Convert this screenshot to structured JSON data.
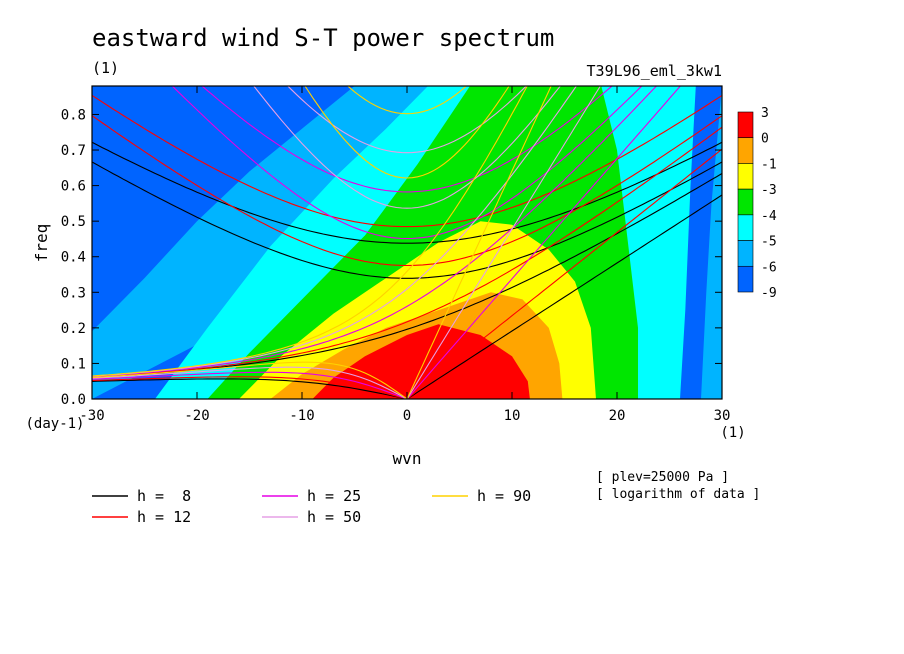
{
  "chart_data": {
    "type": "heatmap",
    "title": "eastward wind S-T power spectrum",
    "title_unit": "(1)",
    "run_label": "T39L96_eml_3kw1",
    "xlabel": "wvn",
    "ylabel": "freq",
    "x_unit_label": "(1)",
    "y_unit_label": "(day-1)",
    "xlim": [
      -30,
      30
    ],
    "ylim": [
      0,
      0.88
    ],
    "x_ticks": [
      -30,
      -20,
      -10,
      0,
      10,
      20,
      30
    ],
    "x_tick_labels": [
      "-30",
      "-20",
      "-10",
      "0",
      "10",
      "20",
      "30"
    ],
    "y_ticks": [
      0,
      0.1,
      0.2,
      0.3,
      0.4,
      0.5,
      0.6,
      0.7,
      0.8
    ],
    "y_tick_labels": [
      "0.0",
      "0.1",
      "0.2",
      "0.3",
      "0.4",
      "0.5",
      "0.6",
      "0.7",
      "0.8"
    ],
    "colorbar": {
      "labels": [
        "3",
        "0",
        "-1",
        "-3",
        "-4",
        "-5",
        "-6",
        "-9"
      ],
      "colors": [
        "#ff0000",
        "#ffa500",
        "#ffff00",
        "#00e600",
        "#00ffff",
        "#00b4ff",
        "#0064ff"
      ]
    },
    "contour_fill_levels": [
      {
        "color": "#0064ff",
        "range": "-9 to -6"
      },
      {
        "color": "#00b4ff",
        "range": "-6 to -5"
      },
      {
        "color": "#00ffff",
        "range": "-5 to -4"
      },
      {
        "color": "#00e600",
        "range": "-4 to -3"
      },
      {
        "color": "#ffff00",
        "range": "-3 to -1"
      },
      {
        "color": "#ffa500",
        "range": "-1 to 0"
      },
      {
        "color": "#ff0000",
        "range": "0 to 3"
      }
    ],
    "dispersion_curves": [
      {
        "label": "h =  8",
        "h": 8,
        "color": "#000000"
      },
      {
        "label": "h = 12",
        "h": 12,
        "color": "#ff0000"
      },
      {
        "label": "h = 25",
        "h": 25,
        "color": "#e600e6"
      },
      {
        "label": "h = 50",
        "h": 50,
        "color": "#e6a0e6"
      },
      {
        "label": "h = 90",
        "h": 90,
        "color": "#ffd200"
      }
    ],
    "annotations": [
      "[ plev=25000 Pa ]",
      "[ logarithm of data ]"
    ]
  }
}
